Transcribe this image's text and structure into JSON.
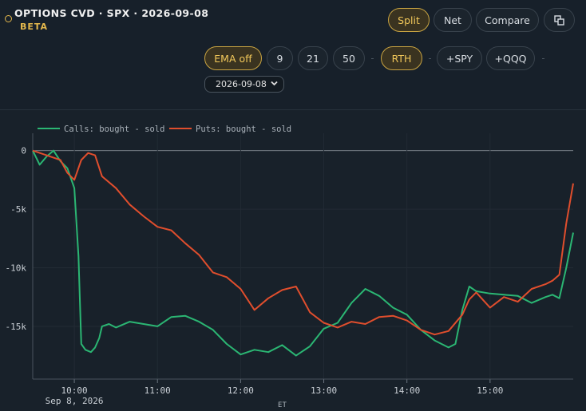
{
  "header": {
    "title": "OPTIONS CVD · SPX · 2026-09-08",
    "badge": "BETA",
    "colors": {
      "accent": "#e5b84c"
    }
  },
  "view_toggles": {
    "split": "Split",
    "net": "Net",
    "compare": "Compare",
    "popout_icon": "popout-window-icon",
    "active": "Split"
  },
  "controls": {
    "ema_off": "EMA off",
    "ema_9": "9",
    "ema_21": "21",
    "ema_50": "50",
    "rth": "RTH",
    "add_spy": "+SPY",
    "add_qqq": "+QQQ",
    "date": "2026-09-08",
    "active": [
      "EMA off",
      "RTH"
    ]
  },
  "chart_data": {
    "type": "line",
    "x_unit": "time (ET)",
    "x_range": [
      "09:30",
      "16:00"
    ],
    "y_ticks": [
      0,
      -5000,
      -10000,
      -15000
    ],
    "y_tick_labels": [
      "0",
      "-5k",
      "-10k",
      "-15k"
    ],
    "ylim": [
      -19500,
      800
    ],
    "x_ticks": [
      "10:00",
      "11:00",
      "12:00",
      "13:00",
      "14:00",
      "15:00"
    ],
    "x_date_label": "Sep 8, 2026",
    "x_axis_label": "ET",
    "legend_position": "top-left",
    "zero_line": true,
    "series": [
      {
        "name": "Calls: bought - sold",
        "color": "#2bb673",
        "x": [
          "09:30",
          "09:35",
          "09:40",
          "09:45",
          "09:50",
          "09:55",
          "10:00",
          "10:03",
          "10:05",
          "10:08",
          "10:12",
          "10:15",
          "10:18",
          "10:20",
          "10:25",
          "10:30",
          "10:40",
          "10:50",
          "11:00",
          "11:10",
          "11:20",
          "11:30",
          "11:40",
          "11:50",
          "12:00",
          "12:10",
          "12:20",
          "12:30",
          "12:40",
          "12:50",
          "13:00",
          "13:10",
          "13:20",
          "13:30",
          "13:40",
          "13:50",
          "14:00",
          "14:10",
          "14:20",
          "14:30",
          "14:35",
          "14:40",
          "14:45",
          "14:50",
          "15:00",
          "15:10",
          "15:20",
          "15:30",
          "15:40",
          "15:45",
          "15:50",
          "15:55",
          "16:00"
        ],
        "values": [
          0,
          -1200,
          -500,
          0,
          -900,
          -1500,
          -3200,
          -9000,
          -16500,
          -17000,
          -17200,
          -16800,
          -16000,
          -15000,
          -14800,
          -15100,
          -14600,
          -14800,
          -15000,
          -14200,
          -14100,
          -14600,
          -15300,
          -16500,
          -17400,
          -17000,
          -17200,
          -16600,
          -17500,
          -16700,
          -15200,
          -14700,
          -13000,
          -11800,
          -12400,
          -13400,
          -14000,
          -15300,
          -16200,
          -16800,
          -16500,
          -13600,
          -11600,
          -12000,
          -12200,
          -12300,
          -12400,
          -13000,
          -12500,
          -12300,
          -12600,
          -10000,
          -7000
        ]
      },
      {
        "name": "Puts: bought - sold",
        "color": "#e04e2d",
        "x": [
          "09:30",
          "09:40",
          "09:50",
          "09:55",
          "10:00",
          "10:05",
          "10:10",
          "10:15",
          "10:20",
          "10:30",
          "10:40",
          "10:50",
          "11:00",
          "11:10",
          "11:20",
          "11:30",
          "11:40",
          "11:50",
          "12:00",
          "12:10",
          "12:20",
          "12:30",
          "12:40",
          "12:50",
          "13:00",
          "13:10",
          "13:20",
          "13:30",
          "13:40",
          "13:50",
          "14:00",
          "14:10",
          "14:20",
          "14:30",
          "14:40",
          "14:45",
          "14:50",
          "15:00",
          "15:10",
          "15:20",
          "15:30",
          "15:40",
          "15:45",
          "15:50",
          "15:55",
          "16:00"
        ],
        "values": [
          0,
          -400,
          -800,
          -1900,
          -2500,
          -800,
          -200,
          -400,
          -2200,
          -3200,
          -4600,
          -5600,
          -6500,
          -6800,
          -7900,
          -8900,
          -10400,
          -10800,
          -11800,
          -13600,
          -12600,
          -11900,
          -11600,
          -13800,
          -14700,
          -15100,
          -14600,
          -14800,
          -14200,
          -14100,
          -14500,
          -15300,
          -15700,
          -15400,
          -14000,
          -12700,
          -12100,
          -13400,
          -12500,
          -12900,
          -11800,
          -11400,
          -11100,
          -10600,
          -6200,
          -2800
        ]
      }
    ]
  }
}
